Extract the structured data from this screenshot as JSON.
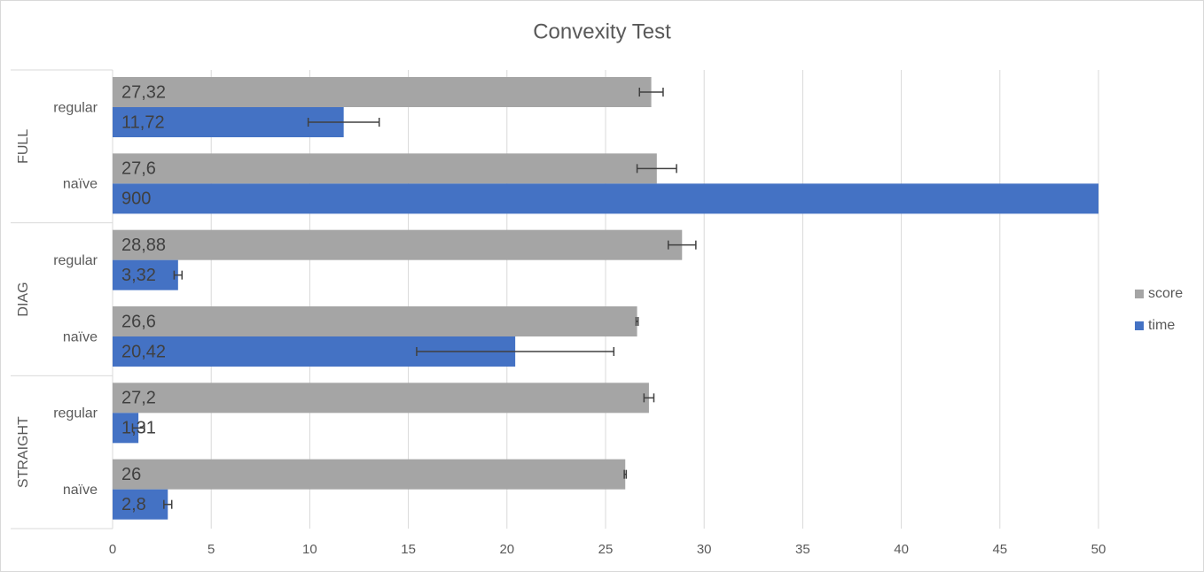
{
  "chart_data": {
    "type": "bar",
    "orientation": "horizontal",
    "title": "Convexity Test",
    "groups": [
      {
        "name": "FULL",
        "categories": [
          "regular",
          "naïve"
        ]
      },
      {
        "name": "DIAG",
        "categories": [
          "regular",
          "naïve"
        ]
      },
      {
        "name": "STRAIGHT",
        "categories": [
          "regular",
          "naïve"
        ]
      }
    ],
    "series": [
      {
        "name": "score",
        "color": "#a5a5a5",
        "values": [
          27.32,
          27.6,
          28.88,
          26.6,
          27.2,
          26
        ],
        "value_labels": [
          "27,32",
          "27,6",
          "28,88",
          "26,6",
          "27,2",
          "26"
        ],
        "errors": [
          0.6,
          1.0,
          0.7,
          0.05,
          0.25,
          0.05
        ]
      },
      {
        "name": "time",
        "color": "#4472c4",
        "values": [
          11.72,
          900,
          3.32,
          20.42,
          1.31,
          2.8
        ],
        "value_labels": [
          "11,72",
          "900",
          "3,32",
          "20,42",
          "1,31",
          "2,8"
        ],
        "errors": [
          1.8,
          null,
          0.2,
          5,
          0.3,
          0.2
        ]
      }
    ],
    "xlim": [
      0,
      50
    ],
    "xticks": [
      0,
      5,
      10,
      15,
      20,
      25,
      30,
      35,
      40,
      45,
      50
    ],
    "grid": true,
    "legend": "right"
  }
}
